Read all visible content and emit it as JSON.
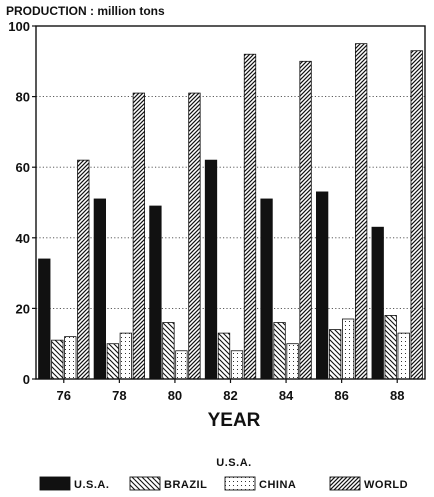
{
  "chart_data": {
    "type": "bar",
    "title": "",
    "ylabel": "PRODUCTION : million tons",
    "xlabel": "YEAR",
    "legend_title": "U.S.A.",
    "categories": [
      "76",
      "78",
      "80",
      "82",
      "84",
      "86",
      "88"
    ],
    "ylim": [
      0,
      100
    ],
    "yticks": [
      0,
      20,
      40,
      60,
      80,
      100
    ],
    "grid": "horizontal dotted",
    "legend_position": "bottom",
    "series": [
      {
        "name": "U.S.A.",
        "values": [
          34,
          51,
          49,
          62,
          51,
          53,
          43
        ],
        "pattern": "solid",
        "color": "#111111"
      },
      {
        "name": "BRAZIL",
        "values": [
          11,
          10,
          16,
          13,
          16,
          14,
          18
        ],
        "pattern": "backslash",
        "color": "#111111"
      },
      {
        "name": "CHINA",
        "values": [
          12,
          13,
          8,
          8,
          10,
          17,
          13
        ],
        "pattern": "dots",
        "color": "#111111"
      },
      {
        "name": "WORLD",
        "values": [
          62,
          81,
          81,
          92,
          90,
          95,
          93
        ],
        "pattern": "slash",
        "color": "#111111"
      }
    ]
  }
}
